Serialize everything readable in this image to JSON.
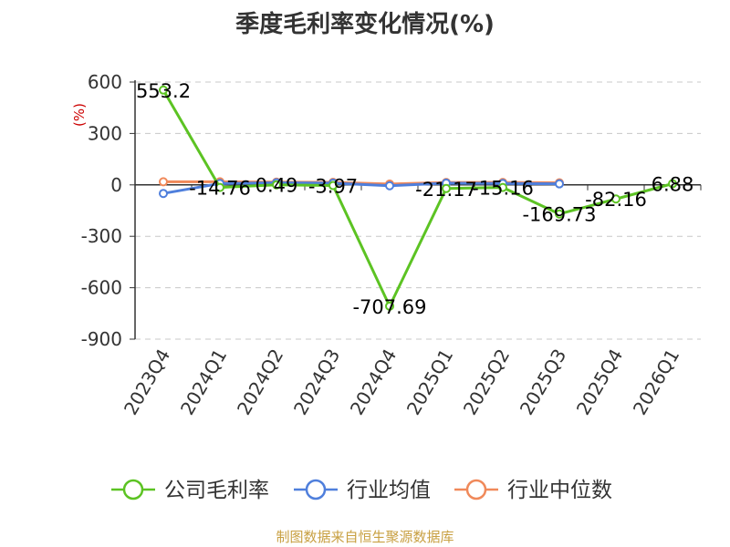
{
  "chart_data": {
    "type": "line",
    "title": "季度毛利率变化情况(%)",
    "ylabel": "(%)",
    "categories": [
      "2023Q4",
      "2024Q1",
      "2024Q2",
      "2024Q3",
      "2024Q4",
      "2025Q1",
      "2025Q2",
      "2025Q3",
      "2025Q4",
      "2026Q1"
    ],
    "yticks": [
      600,
      300,
      0,
      -300,
      -600,
      -900
    ],
    "ylim": [
      -900,
      600
    ],
    "grid": true,
    "legend_position": "bottom",
    "series": [
      {
        "name": "公司毛利率",
        "color": "#5cc323",
        "values": [
          553.2,
          -14.76,
          0.49,
          -3.97,
          -707.69,
          -21.17,
          -15.16,
          -169.73,
          -82.16,
          6.88
        ],
        "labels": [
          "553.2",
          "-14.76",
          "0.49",
          "-3.97",
          "-707.69",
          "-21.17",
          "-15.16",
          "-169.73",
          "-82.16",
          "6.88"
        ]
      },
      {
        "name": "行业均值",
        "color": "#4f7fdc",
        "values": [
          -50,
          8,
          12,
          10,
          -5,
          10,
          8,
          6,
          null,
          null
        ]
      },
      {
        "name": "行业中位数",
        "color": "#f0895a",
        "values": [
          18,
          18,
          16,
          15,
          5,
          14,
          14,
          12,
          null,
          null
        ]
      }
    ]
  },
  "footer": {
    "source": "制图数据来自恒生聚源数据库"
  }
}
